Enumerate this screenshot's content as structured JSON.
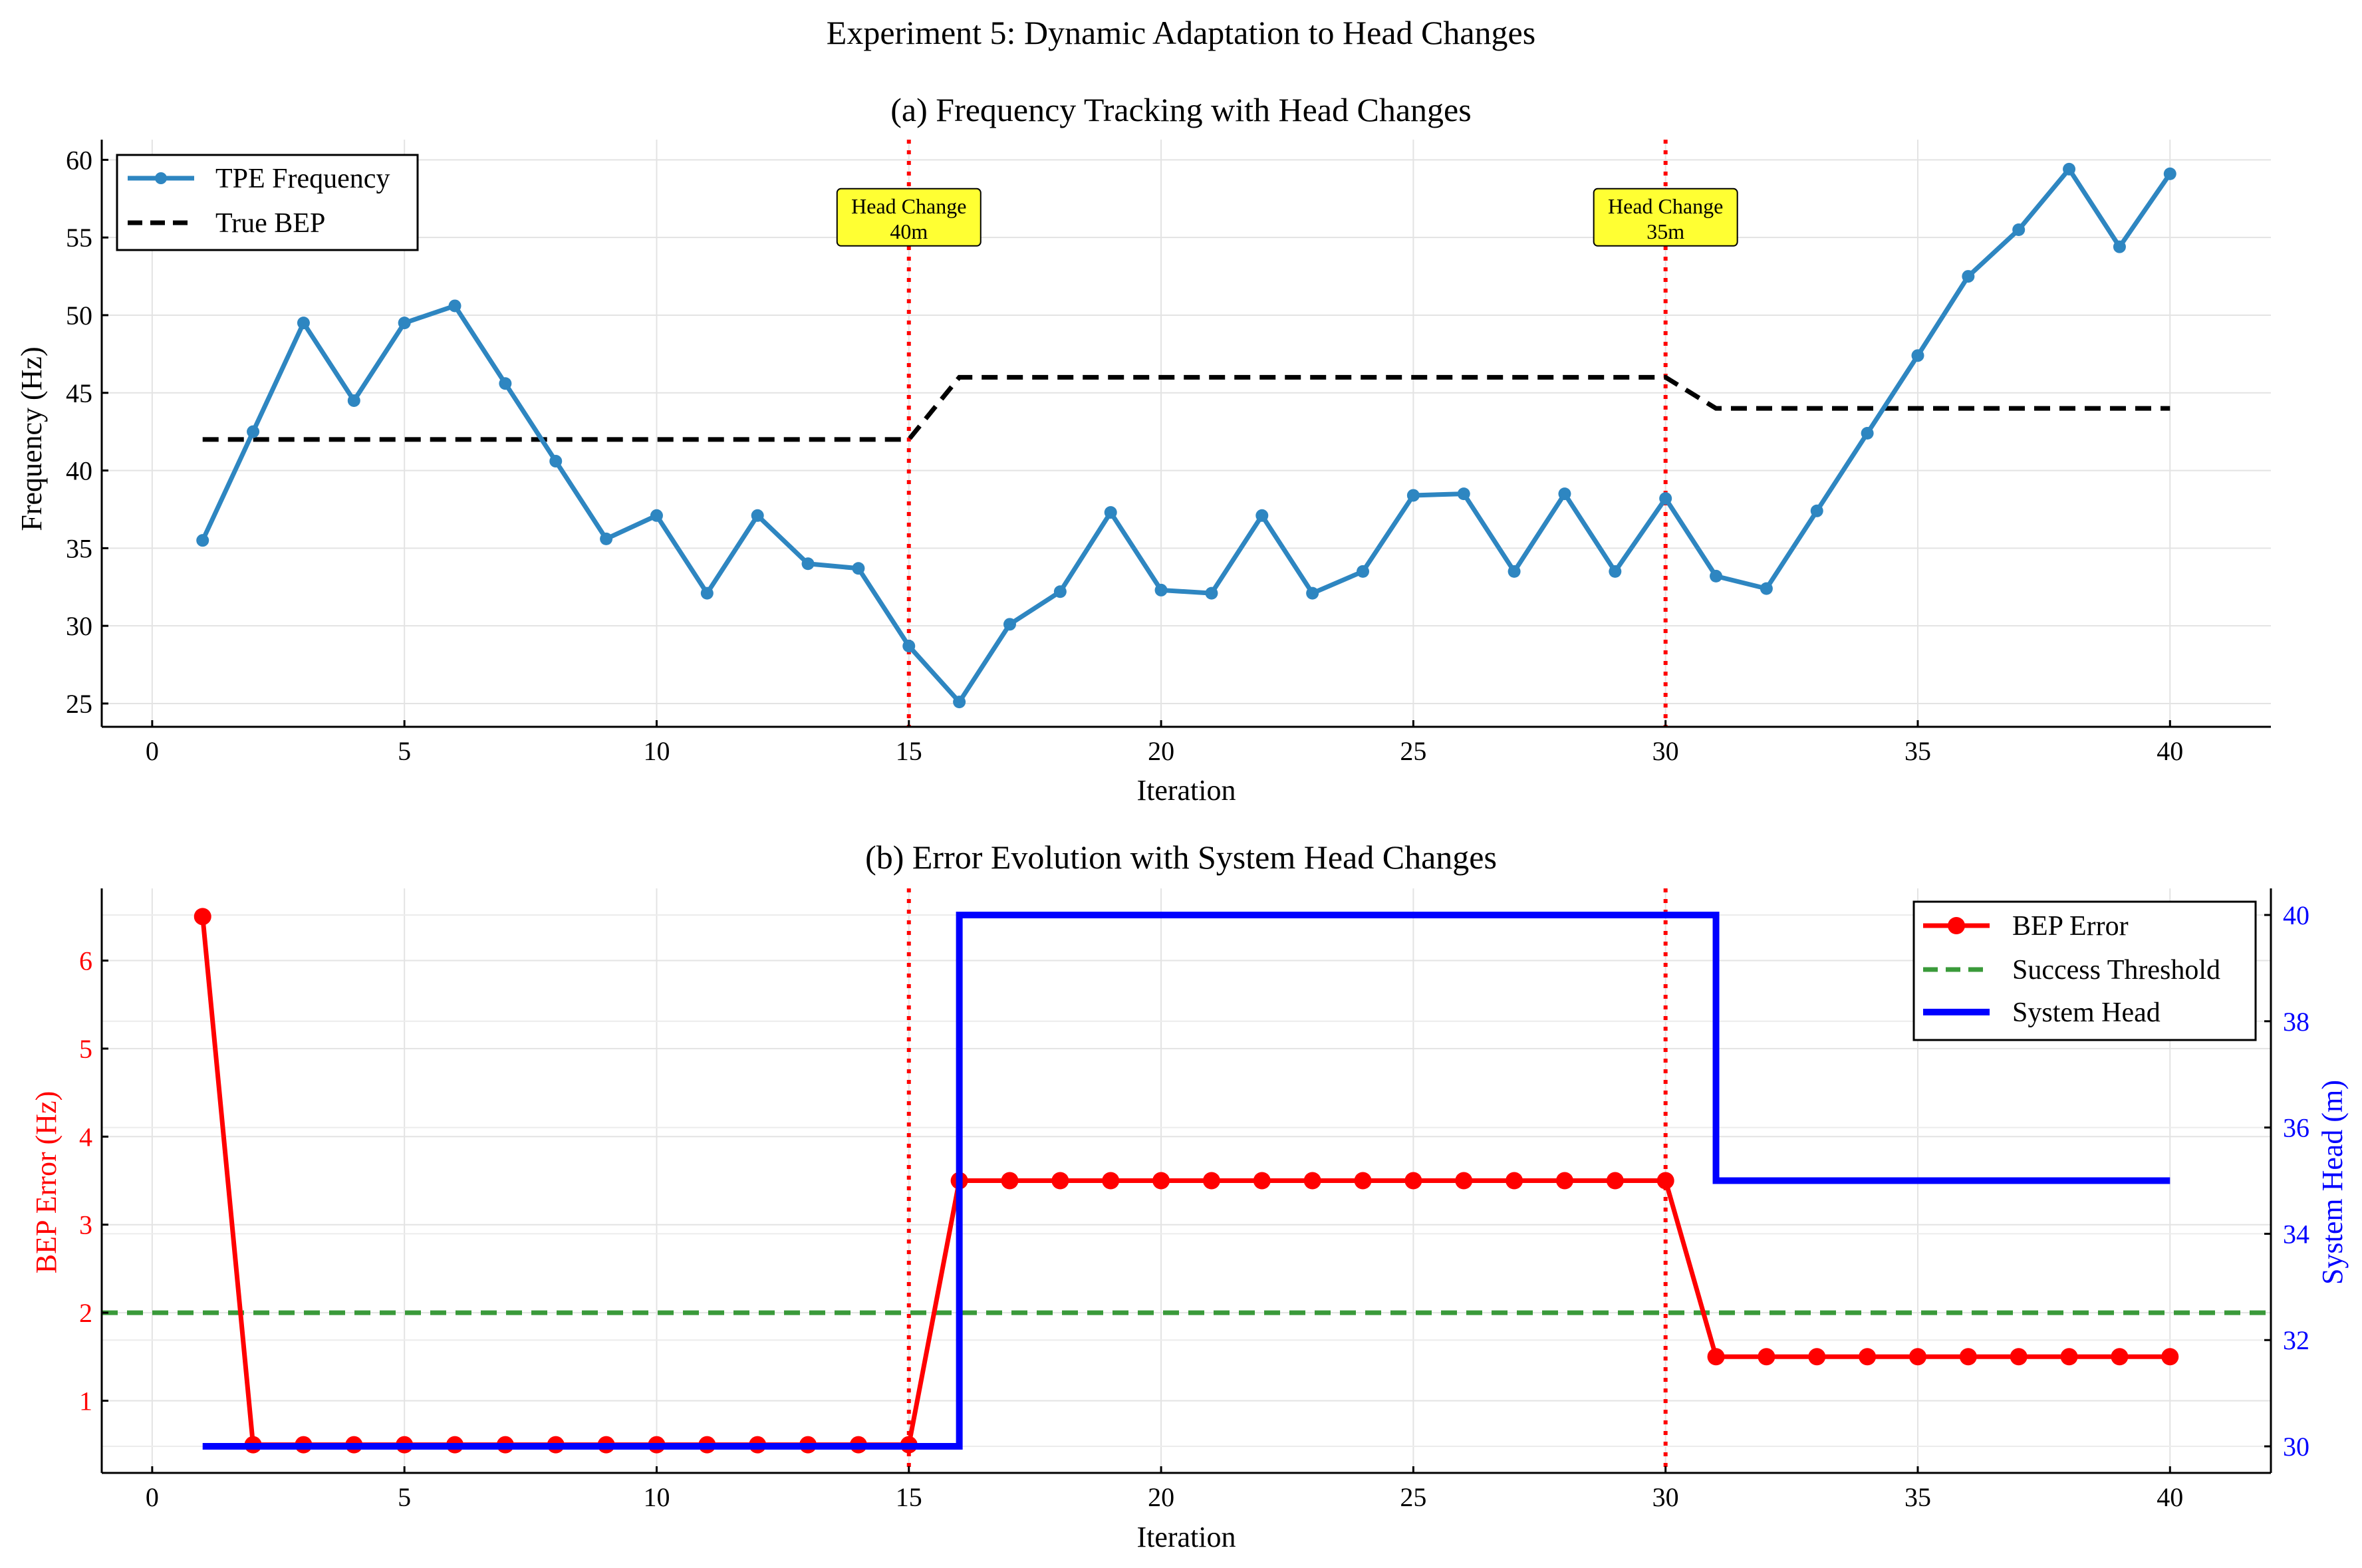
{
  "figure_title": "Experiment 5: Dynamic Adaptation to Head Changes",
  "chart_data": [
    {
      "type": "line",
      "title": "(a) Frequency Tracking with Head Changes",
      "xlabel": "Iteration",
      "ylabel": "Frequency (Hz)",
      "xlim": [
        -1,
        42
      ],
      "ylim": [
        23.5,
        61.3
      ],
      "xticks": [
        0,
        5,
        10,
        15,
        20,
        25,
        30,
        35,
        40
      ],
      "yticks": [
        25,
        30,
        35,
        40,
        45,
        50,
        55,
        60
      ],
      "grid": true,
      "legend_position": "top-left",
      "series": [
        {
          "name": "TPE Frequency",
          "color": "#2e86c1",
          "marker": "circle",
          "x": [
            1,
            2,
            3,
            4,
            5,
            6,
            7,
            8,
            9,
            10,
            11,
            12,
            13,
            14,
            15,
            16,
            17,
            18,
            19,
            20,
            21,
            22,
            23,
            24,
            25,
            26,
            27,
            28,
            29,
            30,
            31,
            32,
            33,
            34,
            35,
            36,
            37,
            38,
            39,
            40
          ],
          "values": [
            35.5,
            42.5,
            49.5,
            44.5,
            49.5,
            50.6,
            45.6,
            40.6,
            35.6,
            37.1,
            32.1,
            37.1,
            34.0,
            33.7,
            28.7,
            25.1,
            30.1,
            32.2,
            37.3,
            32.3,
            32.1,
            37.1,
            32.1,
            33.5,
            38.4,
            38.5,
            33.5,
            38.5,
            33.5,
            38.2,
            33.2,
            32.4,
            37.4,
            42.4,
            47.4,
            52.5,
            55.5,
            59.4,
            54.4,
            59.1
          ]
        },
        {
          "name": "True BEP",
          "color": "#000000",
          "style": "dashed",
          "x": [
            1,
            2,
            3,
            4,
            5,
            6,
            7,
            8,
            9,
            10,
            11,
            12,
            13,
            14,
            15,
            16,
            17,
            18,
            19,
            20,
            21,
            22,
            23,
            24,
            25,
            26,
            27,
            28,
            29,
            30,
            31,
            32,
            33,
            34,
            35,
            36,
            37,
            38,
            39,
            40
          ],
          "values": [
            42,
            42,
            42,
            42,
            42,
            42,
            42,
            42,
            42,
            42,
            42,
            42,
            42,
            42,
            42,
            46,
            46,
            46,
            46,
            46,
            46,
            46,
            46,
            46,
            46,
            46,
            46,
            46,
            46,
            46,
            44,
            44,
            44,
            44,
            44,
            44,
            44,
            44,
            44,
            44
          ]
        }
      ],
      "vlines": [
        {
          "x": 15,
          "color": "#ff0000"
        },
        {
          "x": 30,
          "color": "#ff0000"
        }
      ],
      "annotations": [
        {
          "x": 15,
          "y": 56.3,
          "line1": "Head Change",
          "line2": "40m",
          "bg": "#ffff33"
        },
        {
          "x": 30,
          "y": 56.3,
          "line1": "Head Change",
          "line2": "35m",
          "bg": "#ffff33"
        }
      ]
    },
    {
      "type": "line",
      "title": "(b) Error Evolution with System Head Changes",
      "xlabel": "Iteration",
      "ylabel": "BEP Error (Hz)",
      "ylabel_right": "System Head (m)",
      "xlim": [
        -1,
        42
      ],
      "ylim": [
        0.18,
        6.82
      ],
      "ylim_right": [
        29.5,
        40.5
      ],
      "xticks": [
        0,
        5,
        10,
        15,
        20,
        25,
        30,
        35,
        40
      ],
      "yticks": [
        1,
        2,
        3,
        4,
        5,
        6
      ],
      "yticks_right": [
        30,
        32,
        34,
        36,
        38,
        40
      ],
      "left_axis_color": "#ff0000",
      "right_axis_color": "#0000ff",
      "grid": true,
      "legend_position": "top-right",
      "series": [
        {
          "name": "BEP Error",
          "color": "#ff0000",
          "marker": "circle",
          "axis": "left",
          "x": [
            1,
            2,
            3,
            4,
            5,
            6,
            7,
            8,
            9,
            10,
            11,
            12,
            13,
            14,
            15,
            16,
            17,
            18,
            19,
            20,
            21,
            22,
            23,
            24,
            25,
            26,
            27,
            28,
            29,
            30,
            31,
            32,
            33,
            34,
            35,
            36,
            37,
            38,
            39,
            40
          ],
          "values": [
            6.5,
            0.5,
            0.5,
            0.5,
            0.5,
            0.5,
            0.5,
            0.5,
            0.5,
            0.5,
            0.5,
            0.5,
            0.5,
            0.5,
            0.5,
            3.5,
            3.5,
            3.5,
            3.5,
            3.5,
            3.5,
            3.5,
            3.5,
            3.5,
            3.5,
            3.5,
            3.5,
            3.5,
            3.5,
            3.5,
            1.5,
            1.5,
            1.5,
            1.5,
            1.5,
            1.5,
            1.5,
            1.5,
            1.5,
            1.5
          ]
        },
        {
          "name": "Success Threshold",
          "color": "#3a9a3a",
          "style": "dashed",
          "axis": "left",
          "hline": 2.0
        },
        {
          "name": "System Head",
          "color": "#0000ff",
          "style": "step",
          "axis": "right",
          "x": [
            1,
            2,
            3,
            4,
            5,
            6,
            7,
            8,
            9,
            10,
            11,
            12,
            13,
            14,
            15,
            16,
            17,
            18,
            19,
            20,
            21,
            22,
            23,
            24,
            25,
            26,
            27,
            28,
            29,
            30,
            31,
            32,
            33,
            34,
            35,
            36,
            37,
            38,
            39,
            40
          ],
          "values": [
            30,
            30,
            30,
            30,
            30,
            30,
            30,
            30,
            30,
            30,
            30,
            30,
            30,
            30,
            30,
            40,
            40,
            40,
            40,
            40,
            40,
            40,
            40,
            40,
            40,
            40,
            40,
            40,
            40,
            40,
            35,
            35,
            35,
            35,
            35,
            35,
            35,
            35,
            35,
            35
          ]
        }
      ],
      "vlines": [
        {
          "x": 15,
          "color": "#ff0000"
        },
        {
          "x": 30,
          "color": "#ff0000"
        }
      ]
    }
  ]
}
